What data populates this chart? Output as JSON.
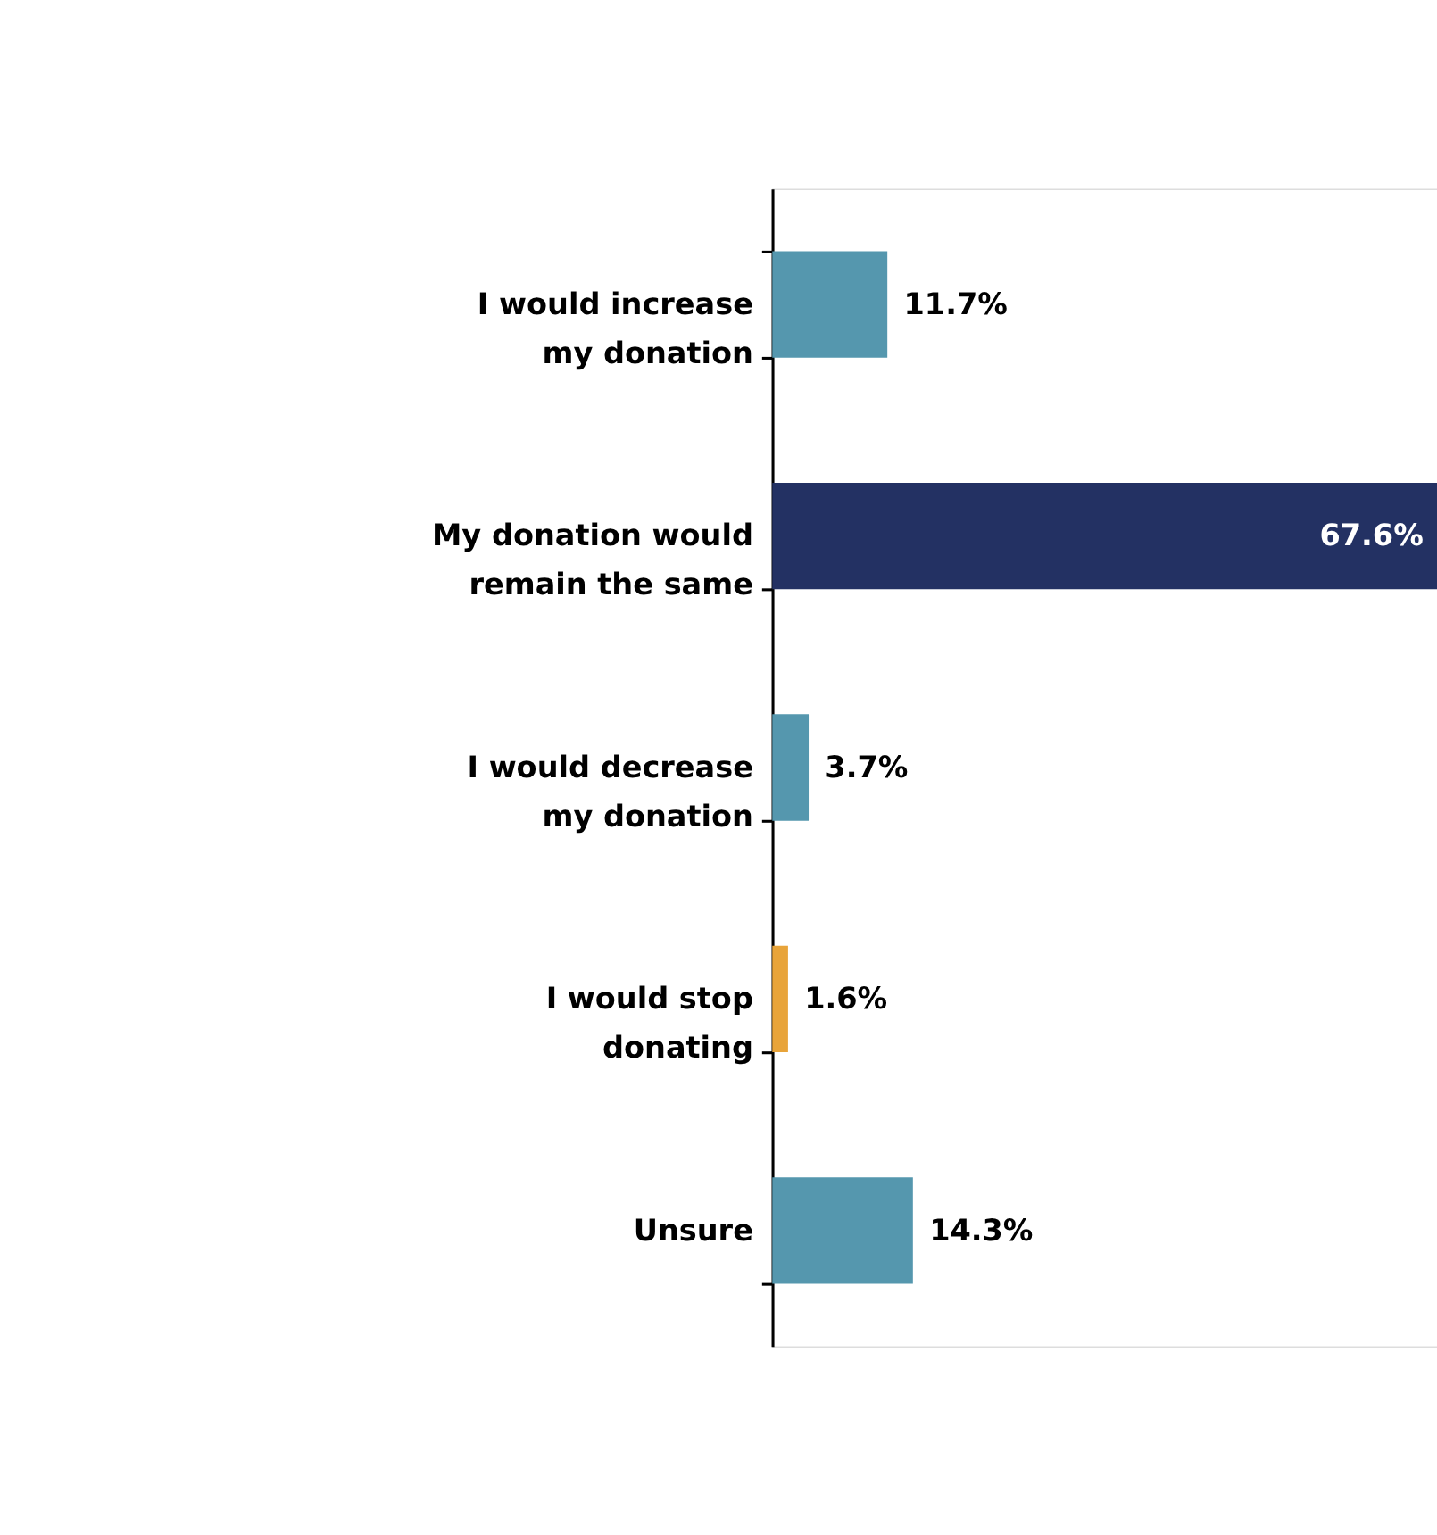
{
  "chart_data": {
    "type": "bar",
    "orientation": "horizontal",
    "categories": [
      "I would increase my donation",
      "My donation would remain the same",
      "I would decrease my donation",
      "I would stop donating",
      "Unsure"
    ],
    "values": [
      11.7,
      67.6,
      3.7,
      1.6,
      14.3
    ],
    "colors": [
      "#5597ae",
      "#233163",
      "#5597ae",
      "#e8a43a",
      "#5597ae"
    ],
    "value_labels": [
      "11.7%",
      "67.6%",
      "3.7%",
      "1.6%",
      "14.3%"
    ],
    "tick_labels": "y",
    "grid": false
  }
}
